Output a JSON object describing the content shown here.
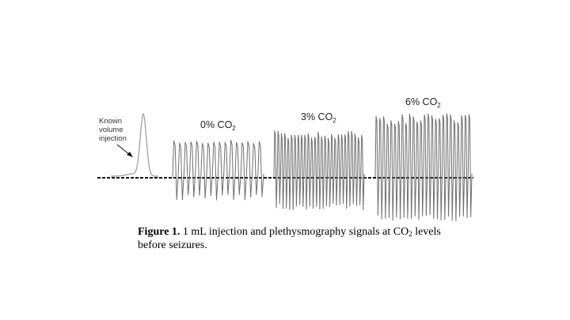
{
  "figure": {
    "known_volume_label_lines": [
      "Known",
      "volume",
      "injection"
    ],
    "panels": [
      {
        "label_main": "0% CO",
        "label_sub": "2",
        "cycles": 16,
        "amplitude": "small"
      },
      {
        "label_main": "3% CO",
        "label_sub": "2",
        "cycles": 27,
        "amplitude": "medium"
      },
      {
        "label_main": "6% CO",
        "label_sub": "2",
        "cycles": 26,
        "amplitude": "large"
      }
    ],
    "colors": {
      "trace": "#6f6f6f",
      "baseline": "#111111",
      "injection": "#9a9a9a"
    }
  },
  "caption": {
    "label": "Figure 1.",
    "text_before_sub": " 1 mL injection and plethysmography signals at CO",
    "sub": "2",
    "text_after_sub": " levels before seizures."
  }
}
